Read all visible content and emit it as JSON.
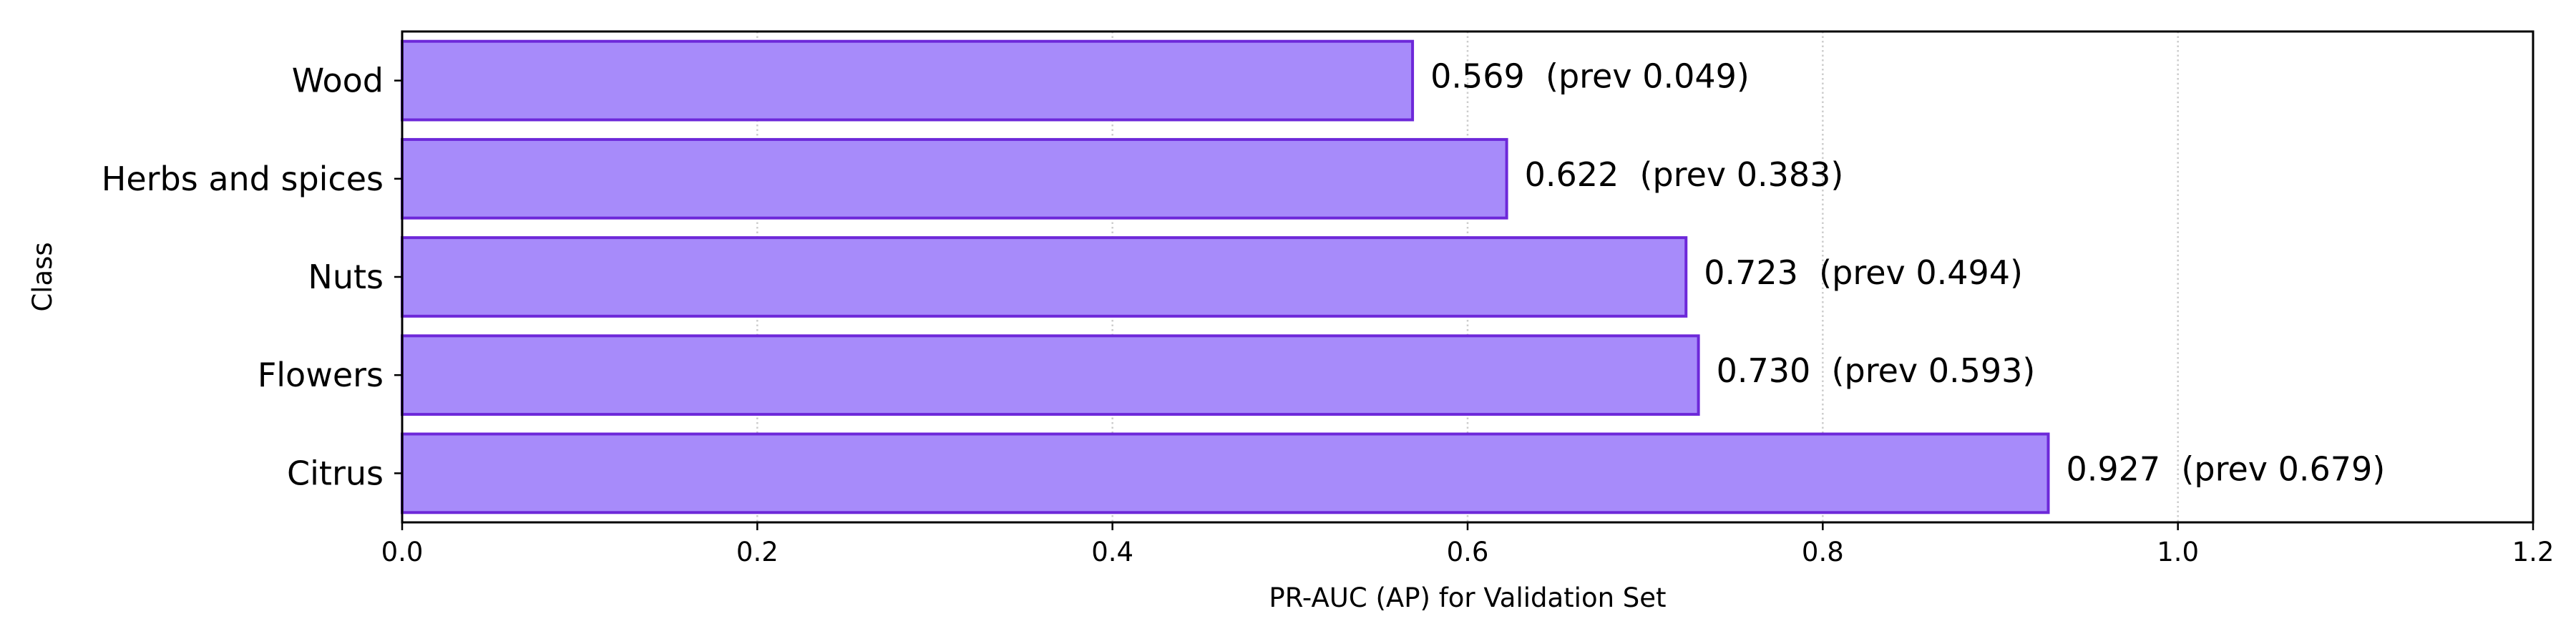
{
  "chart_data": {
    "type": "bar",
    "orientation": "horizontal",
    "title": "",
    "xlabel": "PR-AUC (AP) for Validation Set",
    "ylabel": "Class",
    "categories": [
      "Wood",
      "Herbs and spices",
      "Nuts",
      "Flowers",
      "Citrus"
    ],
    "values": [
      0.569,
      0.622,
      0.723,
      0.73,
      0.927
    ],
    "prev_values": [
      0.049,
      0.383,
      0.494,
      0.593,
      0.679
    ],
    "data_labels": [
      "0.569  (prev 0.049)",
      "0.622  (prev 0.383)",
      "0.723  (prev 0.494)",
      "0.730  (prev 0.593)",
      "0.927  (prev 0.679)"
    ],
    "xlim": [
      0.0,
      1.2
    ],
    "xticks": [
      0.0,
      0.2,
      0.4,
      0.6,
      0.8,
      1.0,
      1.2
    ],
    "xtick_labels": [
      "0.0",
      "0.2",
      "0.4",
      "0.6",
      "0.8",
      "1.0",
      "1.2"
    ],
    "grid": "x-axis dotted",
    "legend": "none",
    "colors": {
      "bar_fill": "#a78bfa",
      "bar_edge": "#6d28d9",
      "grid": "#cccccc",
      "axis": "#000000"
    }
  }
}
